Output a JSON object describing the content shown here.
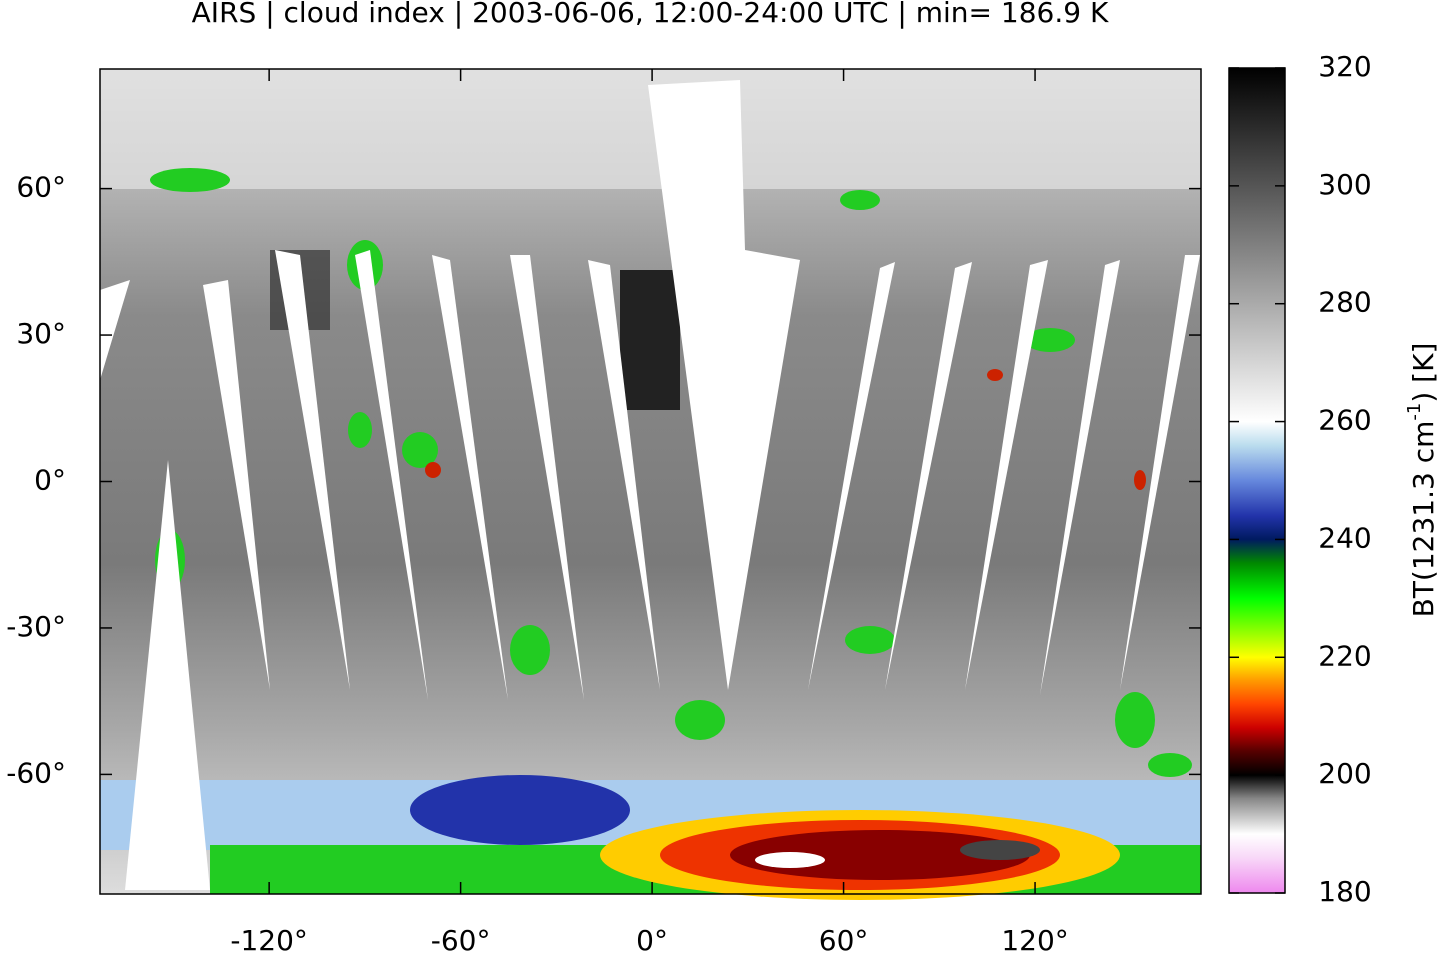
{
  "chart_data": {
    "type": "map",
    "title": "AIRS | cloud index | 2003-06-06, 12:00-24:00 UTC | min= 186.9 K",
    "xlim": [
      -173,
      172
    ],
    "ylim": [
      -84.5,
      84.5
    ],
    "xticks": [
      {
        "value": -120,
        "label": "-120°"
      },
      {
        "value": -60,
        "label": "-60°"
      },
      {
        "value": 0,
        "label": "0°"
      },
      {
        "value": 60,
        "label": "60°"
      },
      {
        "value": 120,
        "label": "120°"
      }
    ],
    "yticks": [
      {
        "value": -60,
        "label": "-60°"
      },
      {
        "value": -30,
        "label": "-30°"
      },
      {
        "value": 0,
        "label": "0°"
      },
      {
        "value": 30,
        "label": "30°"
      },
      {
        "value": 60,
        "label": "60°"
      }
    ],
    "colorbar": {
      "label_prefix": "BT(1231.3 cm",
      "label_superscript": "-1",
      "label_suffix": ") [K]",
      "lim": [
        180,
        320
      ],
      "ticks": [
        180,
        200,
        220,
        240,
        260,
        280,
        300,
        320
      ],
      "stops": [
        {
          "value": 180,
          "color": "#ee88ee"
        },
        {
          "value": 186,
          "color": "#f8d8f8"
        },
        {
          "value": 190,
          "color": "#ffffff"
        },
        {
          "value": 196,
          "color": "#888888"
        },
        {
          "value": 200,
          "color": "#000000"
        },
        {
          "value": 204,
          "color": "#550000"
        },
        {
          "value": 208,
          "color": "#cc0000"
        },
        {
          "value": 212,
          "color": "#ff4400"
        },
        {
          "value": 216,
          "color": "#ff9900"
        },
        {
          "value": 220,
          "color": "#ffff00"
        },
        {
          "value": 224,
          "color": "#99ff00"
        },
        {
          "value": 230,
          "color": "#00ff00"
        },
        {
          "value": 236,
          "color": "#008800"
        },
        {
          "value": 240,
          "color": "#001a60"
        },
        {
          "value": 244,
          "color": "#2233aa"
        },
        {
          "value": 250,
          "color": "#6688dd"
        },
        {
          "value": 256,
          "color": "#bbddee"
        },
        {
          "value": 260,
          "color": "#ffffff"
        },
        {
          "value": 280,
          "color": "#aaaaaa"
        },
        {
          "value": 300,
          "color": "#555555"
        },
        {
          "value": 320,
          "color": "#000000"
        }
      ]
    }
  }
}
